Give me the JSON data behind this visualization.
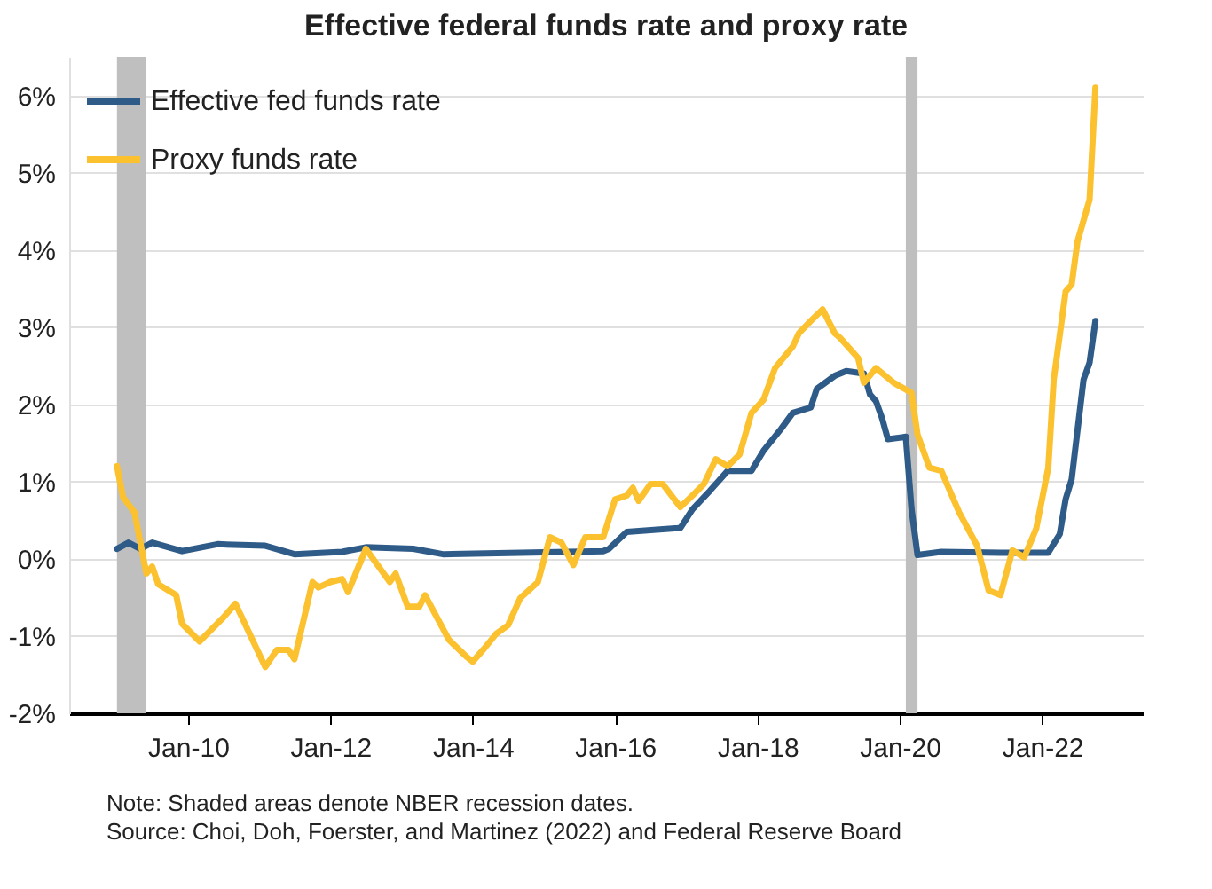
{
  "chart_data": {
    "type": "line",
    "title": "Effective federal funds rate and proxy rate",
    "xlim": [
      "2008-05",
      "2023-06"
    ],
    "xticks": [
      {
        "value": "2010-01",
        "label": "Jan-10"
      },
      {
        "value": "2012-01",
        "label": "Jan-12"
      },
      {
        "value": "2014-01",
        "label": "Jan-14"
      },
      {
        "value": "2016-01",
        "label": "Jan-16"
      },
      {
        "value": "2018-01",
        "label": "Jan-18"
      },
      {
        "value": "2020-01",
        "label": "Jan-20"
      },
      {
        "value": "2022-01",
        "label": "Jan-22"
      }
    ],
    "ylim": [
      -2,
      6.5
    ],
    "yticks": [
      {
        "value": -2,
        "label": "-2%"
      },
      {
        "value": -1,
        "label": "-1%"
      },
      {
        "value": 0,
        "label": "0%"
      },
      {
        "value": 1,
        "label": "1%"
      },
      {
        "value": 2,
        "label": "2%"
      },
      {
        "value": 3,
        "label": "3%"
      },
      {
        "value": 4,
        "label": "4%"
      },
      {
        "value": 5,
        "label": "5%"
      },
      {
        "value": 6,
        "label": "6%"
      }
    ],
    "grid": "y",
    "legend": "top left",
    "bands": [
      {
        "axis": "x",
        "from": "2009-01",
        "to": "2009-06",
        "color": "#bfbfbf"
      },
      {
        "axis": "x",
        "from": "2020-02",
        "to": "2020-04",
        "color": "#bfbfbf"
      }
    ],
    "series": [
      {
        "name": "Effective fed funds rate",
        "color": "#2f5b88",
        "x": [
          "2009-01",
          "2009-03",
          "2009-05",
          "2009-07",
          "2009-12",
          "2010-06",
          "2011-02",
          "2011-07",
          "2012-03",
          "2012-07",
          "2013-03",
          "2013-08",
          "2015-11",
          "2015-12",
          "2016-03",
          "2016-12",
          "2017-02",
          "2017-05",
          "2017-08",
          "2017-12",
          "2018-02",
          "2018-05",
          "2018-07",
          "2018-10",
          "2018-11",
          "2019-02",
          "2019-04",
          "2019-07",
          "2019-08",
          "2019-09",
          "2019-10",
          "2019-11",
          "2020-02",
          "2020-03",
          "2020-04",
          "2020-08",
          "2021-06",
          "2022-02",
          "2022-04",
          "2022-05",
          "2022-06",
          "2022-08",
          "2022-09",
          "2022-10"
        ],
        "values": [
          0.13,
          0.21,
          0.13,
          0.21,
          0.1,
          0.19,
          0.17,
          0.06,
          0.09,
          0.15,
          0.13,
          0.06,
          0.1,
          0.13,
          0.35,
          0.4,
          0.64,
          0.88,
          1.14,
          1.14,
          1.4,
          1.68,
          1.89,
          1.96,
          2.2,
          2.37,
          2.43,
          2.4,
          2.13,
          2.04,
          1.83,
          1.55,
          1.58,
          0.65,
          0.05,
          0.09,
          0.08,
          0.08,
          0.32,
          0.77,
          1.03,
          2.32,
          2.54,
          3.08
        ]
      },
      {
        "name": "Proxy funds rate",
        "color": "#fcc12e",
        "x": [
          "2009-01",
          "2009-02",
          "2009-04",
          "2009-06",
          "2009-07",
          "2009-08",
          "2009-11",
          "2009-12",
          "2010-03",
          "2010-07",
          "2010-09",
          "2011-02",
          "2011-04",
          "2011-06",
          "2011-07",
          "2011-10",
          "2011-11",
          "2012-01",
          "2012-03",
          "2012-04",
          "2012-07",
          "2012-11",
          "2012-12",
          "2013-02",
          "2013-04",
          "2013-05",
          "2013-09",
          "2013-12",
          "2014-01",
          "2014-03",
          "2014-05",
          "2014-07",
          "2014-09",
          "2014-12",
          "2015-02",
          "2015-04",
          "2015-06",
          "2015-08",
          "2015-11",
          "2016-01",
          "2016-03",
          "2016-04",
          "2016-05",
          "2016-07",
          "2016-09",
          "2016-12",
          "2017-02",
          "2017-04",
          "2017-06",
          "2017-08",
          "2017-10",
          "2017-12",
          "2018-02",
          "2018-04",
          "2018-07",
          "2018-08",
          "2018-10",
          "2018-12",
          "2019-02",
          "2019-03",
          "2019-06",
          "2019-07",
          "2019-09",
          "2019-12",
          "2020-03",
          "2020-04",
          "2020-06",
          "2020-08",
          "2020-11",
          "2021-02",
          "2021-04",
          "2021-06",
          "2021-08",
          "2021-10",
          "2021-12",
          "2022-02",
          "2022-03",
          "2022-05",
          "2022-06",
          "2022-07",
          "2022-09",
          "2022-10"
        ],
        "values": [
          1.2,
          0.8,
          0.6,
          -0.19,
          -0.1,
          -0.33,
          -0.47,
          -0.84,
          -1.07,
          -0.76,
          -0.58,
          -1.4,
          -1.18,
          -1.18,
          -1.3,
          -0.3,
          -0.37,
          -0.3,
          -0.26,
          -0.43,
          0.13,
          -0.3,
          -0.19,
          -0.62,
          -0.62,
          -0.47,
          -1.05,
          -1.27,
          -1.33,
          -1.16,
          -0.97,
          -0.86,
          -0.51,
          -0.3,
          0.28,
          0.21,
          -0.08,
          0.28,
          0.28,
          0.77,
          0.82,
          0.92,
          0.75,
          0.97,
          0.97,
          0.67,
          0.82,
          0.97,
          1.29,
          1.2,
          1.35,
          1.89,
          2.06,
          2.47,
          2.75,
          2.92,
          3.08,
          3.23,
          2.92,
          2.86,
          2.6,
          2.28,
          2.47,
          2.28,
          2.15,
          1.61,
          1.18,
          1.14,
          0.6,
          0.17,
          -0.41,
          -0.47,
          0.11,
          0.02,
          0.39,
          1.18,
          2.32,
          3.46,
          3.55,
          4.11,
          4.65,
          6.1
        ]
      }
    ],
    "annotations": [
      "Note: Shaded areas denote NBER recession dates.",
      "Source: Choi, Doh, Foerster, and Martinez (2022) and Federal Reserve Board"
    ]
  }
}
